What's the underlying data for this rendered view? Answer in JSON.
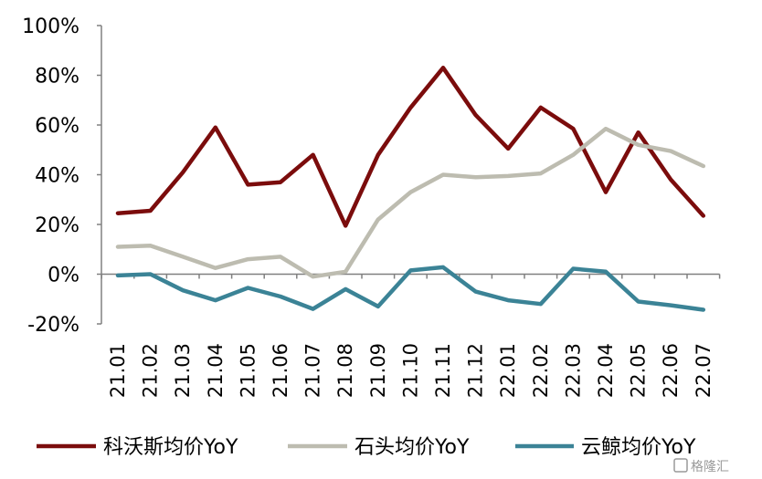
{
  "chart_data": {
    "type": "line",
    "title": "",
    "xlabel": "",
    "ylabel": "",
    "ylim": [
      -20,
      100
    ],
    "yticks": [
      "-20%",
      "0%",
      "20%",
      "40%",
      "60%",
      "80%",
      "100%"
    ],
    "categories": [
      "21.01",
      "21.02",
      "21.03",
      "21.04",
      "21.05",
      "21.06",
      "21.07",
      "21.08",
      "21.09",
      "21.10",
      "21.11",
      "21.12",
      "22.01",
      "22.02",
      "22.03",
      "22.04",
      "22.05",
      "22.06",
      "22.07"
    ],
    "grid": false,
    "legend_position": "bottom",
    "series": [
      {
        "name": "科沃斯均价YoY",
        "color": "#7B0C0C",
        "values": [
          24.5,
          25.5,
          41,
          59,
          36,
          37,
          48,
          19.5,
          48,
          67,
          83,
          64,
          50.5,
          67,
          58.5,
          33,
          57,
          38,
          23.5
        ]
      },
      {
        "name": "石头均价YoY",
        "color": "#BDBCB0",
        "values": [
          11,
          11.5,
          7,
          2.5,
          6,
          7,
          -1,
          1,
          22,
          33,
          40,
          39,
          39.5,
          40.5,
          48,
          58.5,
          52,
          49.5,
          43.5
        ]
      },
      {
        "name": "云鲸均价YoY",
        "color": "#3B8396",
        "values": [
          -0.5,
          0,
          -6.5,
          -10.5,
          -5.5,
          -9,
          -14,
          -6,
          -13,
          1.5,
          2.8,
          -7,
          -10.5,
          -12,
          2.2,
          1,
          -11,
          -12.5,
          -14.3
        ]
      }
    ]
  },
  "watermark": "格隆汇"
}
